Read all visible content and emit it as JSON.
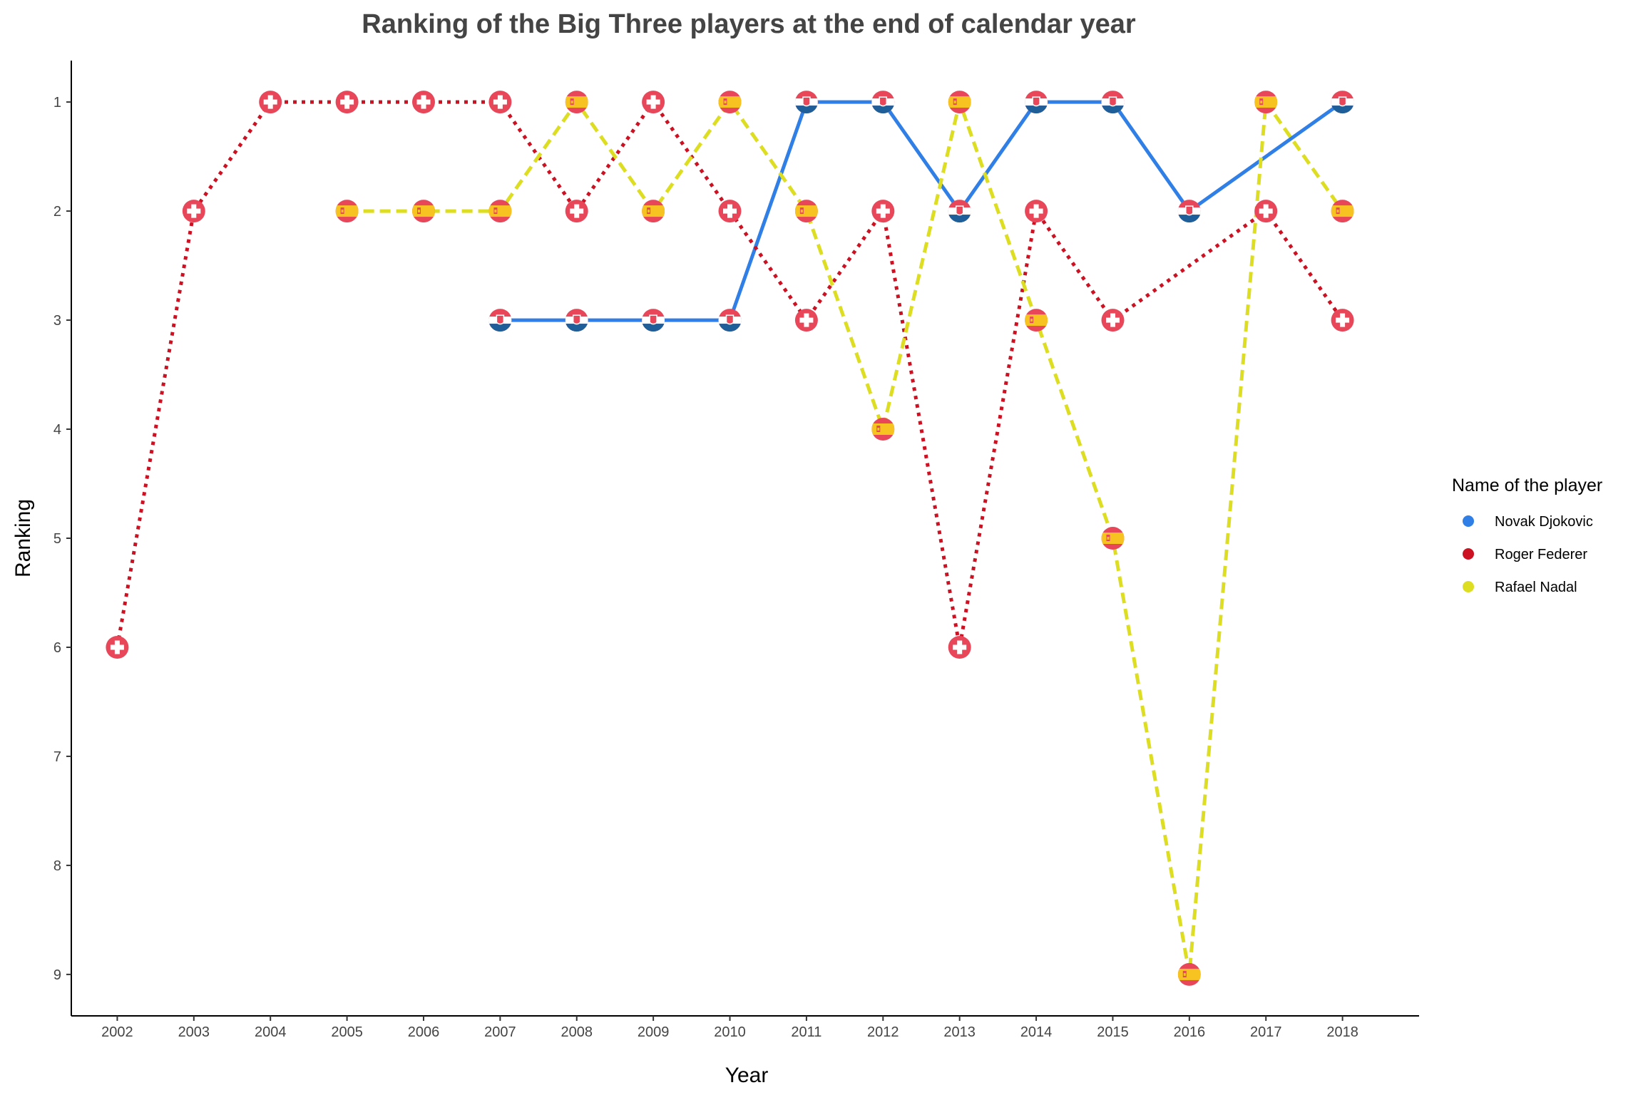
{
  "chart_data": {
    "type": "line",
    "title": "Ranking of the Big Three players at the end of calendar year",
    "xlabel": "Year",
    "ylabel": "Ranking",
    "x": [
      2002,
      2003,
      2004,
      2005,
      2006,
      2007,
      2008,
      2009,
      2010,
      2011,
      2012,
      2013,
      2014,
      2015,
      2016,
      2017,
      2018
    ],
    "xlim": [
      2001.4,
      2019.0
    ],
    "ylim": [
      9.38,
      0.62
    ],
    "y_reversed": true,
    "y_ticks": [
      1,
      2,
      3,
      4,
      5,
      6,
      7,
      8,
      9
    ],
    "grid": false,
    "legend_position": "right",
    "legend_title": "Name of the player",
    "series": [
      {
        "name": "Novak Djokovic",
        "color": "#2F7FE6",
        "line_style": "solid",
        "marker_icon": "serbia-flag-icon",
        "points": [
          [
            2007,
            3
          ],
          [
            2008,
            3
          ],
          [
            2009,
            3
          ],
          [
            2010,
            3
          ],
          [
            2011,
            1
          ],
          [
            2012,
            1
          ],
          [
            2013,
            2
          ],
          [
            2014,
            1
          ],
          [
            2015,
            1
          ],
          [
            2016,
            2
          ],
          [
            2018,
            1
          ]
        ]
      },
      {
        "name": "Roger Federer",
        "color": "#CC1122",
        "line_style": "dotted",
        "marker_icon": "switzerland-flag-icon",
        "points": [
          [
            2002,
            6
          ],
          [
            2003,
            2
          ],
          [
            2004,
            1
          ],
          [
            2005,
            1
          ],
          [
            2006,
            1
          ],
          [
            2007,
            1
          ],
          [
            2008,
            2
          ],
          [
            2009,
            1
          ],
          [
            2010,
            2
          ],
          [
            2011,
            3
          ],
          [
            2012,
            2
          ],
          [
            2013,
            6
          ],
          [
            2014,
            2
          ],
          [
            2015,
            3
          ],
          [
            2017,
            2
          ],
          [
            2018,
            3
          ]
        ]
      },
      {
        "name": "Rafael Nadal",
        "color": "#DDDD22",
        "line_style": "dashed",
        "marker_icon": "spain-flag-icon",
        "points": [
          [
            2005,
            2
          ],
          [
            2006,
            2
          ],
          [
            2007,
            2
          ],
          [
            2008,
            1
          ],
          [
            2009,
            2
          ],
          [
            2010,
            1
          ],
          [
            2011,
            2
          ],
          [
            2012,
            4
          ],
          [
            2013,
            1
          ],
          [
            2014,
            3
          ],
          [
            2015,
            5
          ],
          [
            2016,
            9
          ],
          [
            2017,
            1
          ],
          [
            2018,
            2
          ]
        ]
      }
    ],
    "flag_colors": {
      "red": "#E8475A",
      "white": "#FFFFFF",
      "spain_yellow": "#F6C321",
      "serbia_blue": "#1F5F99"
    }
  }
}
